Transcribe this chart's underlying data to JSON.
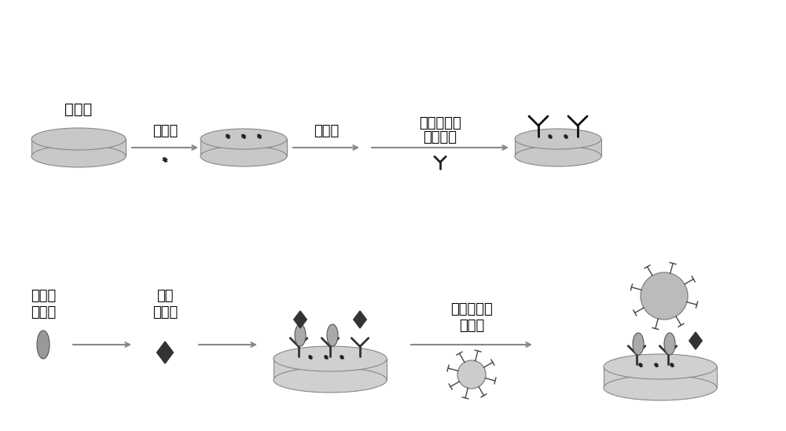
{
  "bg_color": "#ffffff",
  "text_color": "#000000",
  "electrode_color": "#c8c8c8",
  "electrode_edge": "#888888",
  "arrow_color": "#888888",
  "label_step1": "金电极",
  "label_step2": "半胱胺",
  "label_step3": "戊二醛",
  "label_step4_line1": "肿瘤标志物",
  "label_step4_line2": "第一抗体",
  "label_bsa": "牛血清\n白蛋白",
  "label_marker": "肿瘤\n标志物",
  "label_nano": "复合功能化\n纳米球",
  "font_size_label": 13,
  "font_size_small": 10
}
